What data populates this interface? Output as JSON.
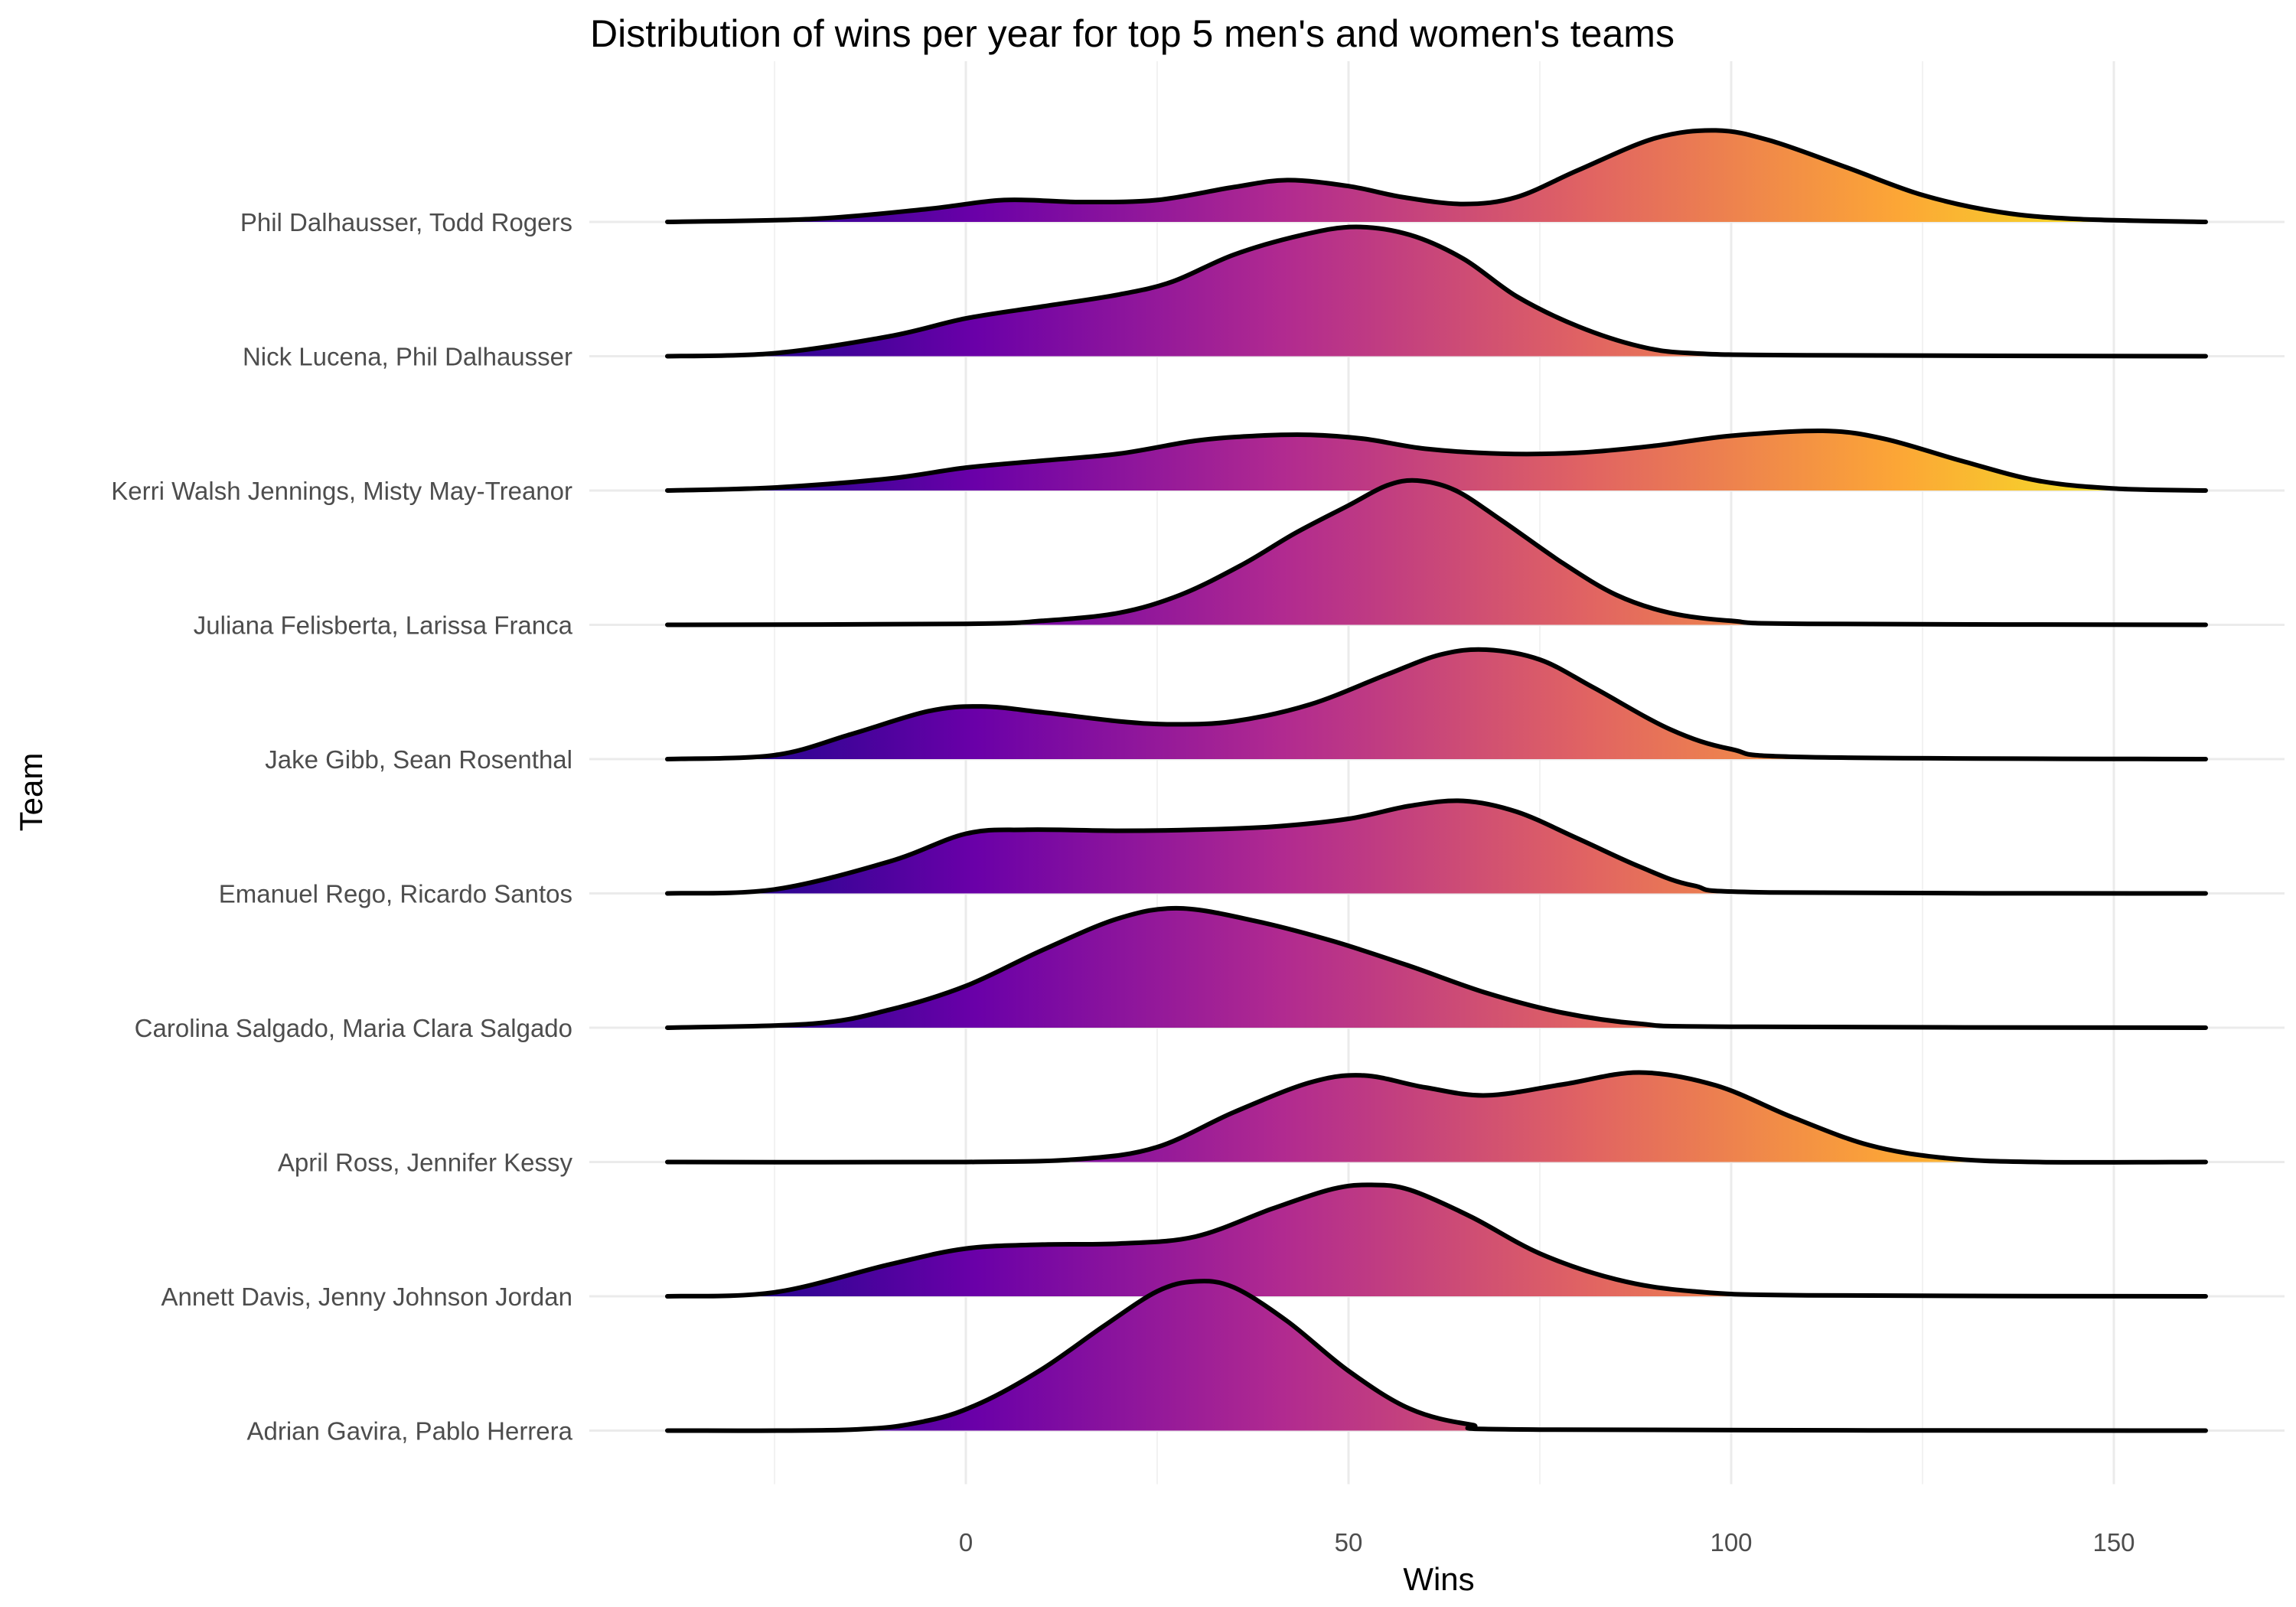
{
  "chart_data": {
    "type": "ridgeline",
    "title": "Distribution of wins per year for top 5 men's and women's teams",
    "xlabel": "Wins",
    "ylabel": "Team",
    "xlim": [
      -39,
      162
    ],
    "x_ticks": [
      0,
      50,
      100,
      150
    ],
    "grid": true,
    "fill": "horizontal gradient by Wins (plasma)",
    "gradient_colors": [
      "#0d0887",
      "#6a00a8",
      "#b12a90",
      "#e16462",
      "#fca636",
      "#f0f921"
    ],
    "series": [
      {
        "name": "Phil Dalhausser, Todd Rogers",
        "points": [
          [
            -39,
            0
          ],
          [
            -20,
            0.03
          ],
          [
            -5,
            0.13
          ],
          [
            5,
            0.22
          ],
          [
            15,
            0.2
          ],
          [
            25,
            0.22
          ],
          [
            35,
            0.35
          ],
          [
            42,
            0.42
          ],
          [
            50,
            0.36
          ],
          [
            57,
            0.25
          ],
          [
            65,
            0.18
          ],
          [
            72,
            0.25
          ],
          [
            80,
            0.52
          ],
          [
            90,
            0.84
          ],
          [
            98,
            0.92
          ],
          [
            105,
            0.82
          ],
          [
            115,
            0.55
          ],
          [
            125,
            0.27
          ],
          [
            135,
            0.1
          ],
          [
            145,
            0.03
          ],
          [
            162,
            0
          ]
        ]
      },
      {
        "name": "Nick Lucena, Phil Dalhausser",
        "points": [
          [
            -39,
            0
          ],
          [
            -25,
            0.03
          ],
          [
            -10,
            0.2
          ],
          [
            0,
            0.38
          ],
          [
            10,
            0.5
          ],
          [
            20,
            0.62
          ],
          [
            27,
            0.75
          ],
          [
            35,
            1.02
          ],
          [
            44,
            1.22
          ],
          [
            51,
            1.3
          ],
          [
            58,
            1.22
          ],
          [
            65,
            0.98
          ],
          [
            72,
            0.6
          ],
          [
            80,
            0.3
          ],
          [
            88,
            0.1
          ],
          [
            95,
            0.03
          ],
          [
            110,
            0.01
          ],
          [
            162,
            0
          ]
        ]
      },
      {
        "name": "Kerri Walsh Jennings, Misty May-Treanor",
        "points": [
          [
            -39,
            0
          ],
          [
            -25,
            0.03
          ],
          [
            -10,
            0.12
          ],
          [
            0,
            0.23
          ],
          [
            10,
            0.3
          ],
          [
            20,
            0.37
          ],
          [
            30,
            0.5
          ],
          [
            38,
            0.55
          ],
          [
            45,
            0.56
          ],
          [
            52,
            0.52
          ],
          [
            60,
            0.42
          ],
          [
            70,
            0.37
          ],
          [
            80,
            0.38
          ],
          [
            90,
            0.45
          ],
          [
            100,
            0.55
          ],
          [
            112,
            0.6
          ],
          [
            120,
            0.52
          ],
          [
            130,
            0.3
          ],
          [
            140,
            0.1
          ],
          [
            150,
            0.02
          ],
          [
            162,
            0
          ]
        ]
      },
      {
        "name": "Juliana Felisberta, Larissa Franca",
        "points": [
          [
            -39,
            0
          ],
          [
            0,
            0.01
          ],
          [
            10,
            0.04
          ],
          [
            20,
            0.12
          ],
          [
            28,
            0.3
          ],
          [
            36,
            0.6
          ],
          [
            43,
            0.92
          ],
          [
            50,
            1.2
          ],
          [
            55,
            1.4
          ],
          [
            59,
            1.45
          ],
          [
            64,
            1.35
          ],
          [
            70,
            1.05
          ],
          [
            78,
            0.62
          ],
          [
            85,
            0.3
          ],
          [
            92,
            0.12
          ],
          [
            100,
            0.04
          ],
          [
            110,
            0.01
          ],
          [
            162,
            0
          ]
        ]
      },
      {
        "name": "Jake Gibb, Sean Rosenthal",
        "points": [
          [
            -39,
            0
          ],
          [
            -25,
            0.04
          ],
          [
            -15,
            0.25
          ],
          [
            -5,
            0.48
          ],
          [
            2,
            0.53
          ],
          [
            10,
            0.47
          ],
          [
            20,
            0.38
          ],
          [
            27,
            0.35
          ],
          [
            35,
            0.38
          ],
          [
            45,
            0.55
          ],
          [
            55,
            0.85
          ],
          [
            62,
            1.05
          ],
          [
            68,
            1.1
          ],
          [
            75,
            1.0
          ],
          [
            82,
            0.72
          ],
          [
            92,
            0.3
          ],
          [
            100,
            0.1
          ],
          [
            110,
            0.02
          ],
          [
            162,
            0
          ]
        ]
      },
      {
        "name": "Emanuel Rego, Ricardo Santos",
        "points": [
          [
            -39,
            0
          ],
          [
            -25,
            0.04
          ],
          [
            -10,
            0.32
          ],
          [
            0,
            0.6
          ],
          [
            8,
            0.64
          ],
          [
            20,
            0.63
          ],
          [
            30,
            0.64
          ],
          [
            40,
            0.67
          ],
          [
            50,
            0.75
          ],
          [
            58,
            0.88
          ],
          [
            65,
            0.93
          ],
          [
            72,
            0.82
          ],
          [
            80,
            0.55
          ],
          [
            88,
            0.27
          ],
          [
            95,
            0.08
          ],
          [
            105,
            0.01
          ],
          [
            162,
            0
          ]
        ]
      },
      {
        "name": "Carolina Salgado, Maria Clara Salgado",
        "points": [
          [
            -39,
            0
          ],
          [
            -20,
            0.04
          ],
          [
            -10,
            0.18
          ],
          [
            0,
            0.42
          ],
          [
            10,
            0.78
          ],
          [
            20,
            1.1
          ],
          [
            28,
            1.2
          ],
          [
            38,
            1.07
          ],
          [
            48,
            0.87
          ],
          [
            58,
            0.62
          ],
          [
            68,
            0.35
          ],
          [
            78,
            0.15
          ],
          [
            88,
            0.04
          ],
          [
            100,
            0.01
          ],
          [
            162,
            0
          ]
        ]
      },
      {
        "name": "April Ross, Jennifer Kessy",
        "points": [
          [
            -39,
            0
          ],
          [
            0,
            0
          ],
          [
            15,
            0.03
          ],
          [
            25,
            0.15
          ],
          [
            35,
            0.5
          ],
          [
            45,
            0.8
          ],
          [
            52,
            0.87
          ],
          [
            60,
            0.75
          ],
          [
            68,
            0.67
          ],
          [
            78,
            0.78
          ],
          [
            88,
            0.9
          ],
          [
            98,
            0.77
          ],
          [
            108,
            0.45
          ],
          [
            118,
            0.17
          ],
          [
            128,
            0.04
          ],
          [
            140,
            0
          ],
          [
            162,
            0
          ]
        ]
      },
      {
        "name": "Annett Davis, Jenny Johnson Jordan",
        "points": [
          [
            -39,
            0
          ],
          [
            -25,
            0.04
          ],
          [
            -10,
            0.32
          ],
          [
            0,
            0.48
          ],
          [
            10,
            0.52
          ],
          [
            20,
            0.53
          ],
          [
            30,
            0.6
          ],
          [
            40,
            0.88
          ],
          [
            48,
            1.08
          ],
          [
            53,
            1.12
          ],
          [
            58,
            1.07
          ],
          [
            66,
            0.8
          ],
          [
            75,
            0.43
          ],
          [
            85,
            0.17
          ],
          [
            95,
            0.05
          ],
          [
            110,
            0.01
          ],
          [
            162,
            0
          ]
        ]
      },
      {
        "name": "Adrian Gavira, Pablo Herrera",
        "points": [
          [
            -39,
            0
          ],
          [
            -15,
            0.01
          ],
          [
            -5,
            0.1
          ],
          [
            2,
            0.28
          ],
          [
            10,
            0.62
          ],
          [
            18,
            1.05
          ],
          [
            25,
            1.4
          ],
          [
            30,
            1.5
          ],
          [
            35,
            1.44
          ],
          [
            42,
            1.1
          ],
          [
            50,
            0.6
          ],
          [
            58,
            0.22
          ],
          [
            66,
            0.06
          ],
          [
            75,
            0.01
          ],
          [
            162,
            0
          ]
        ]
      }
    ]
  }
}
